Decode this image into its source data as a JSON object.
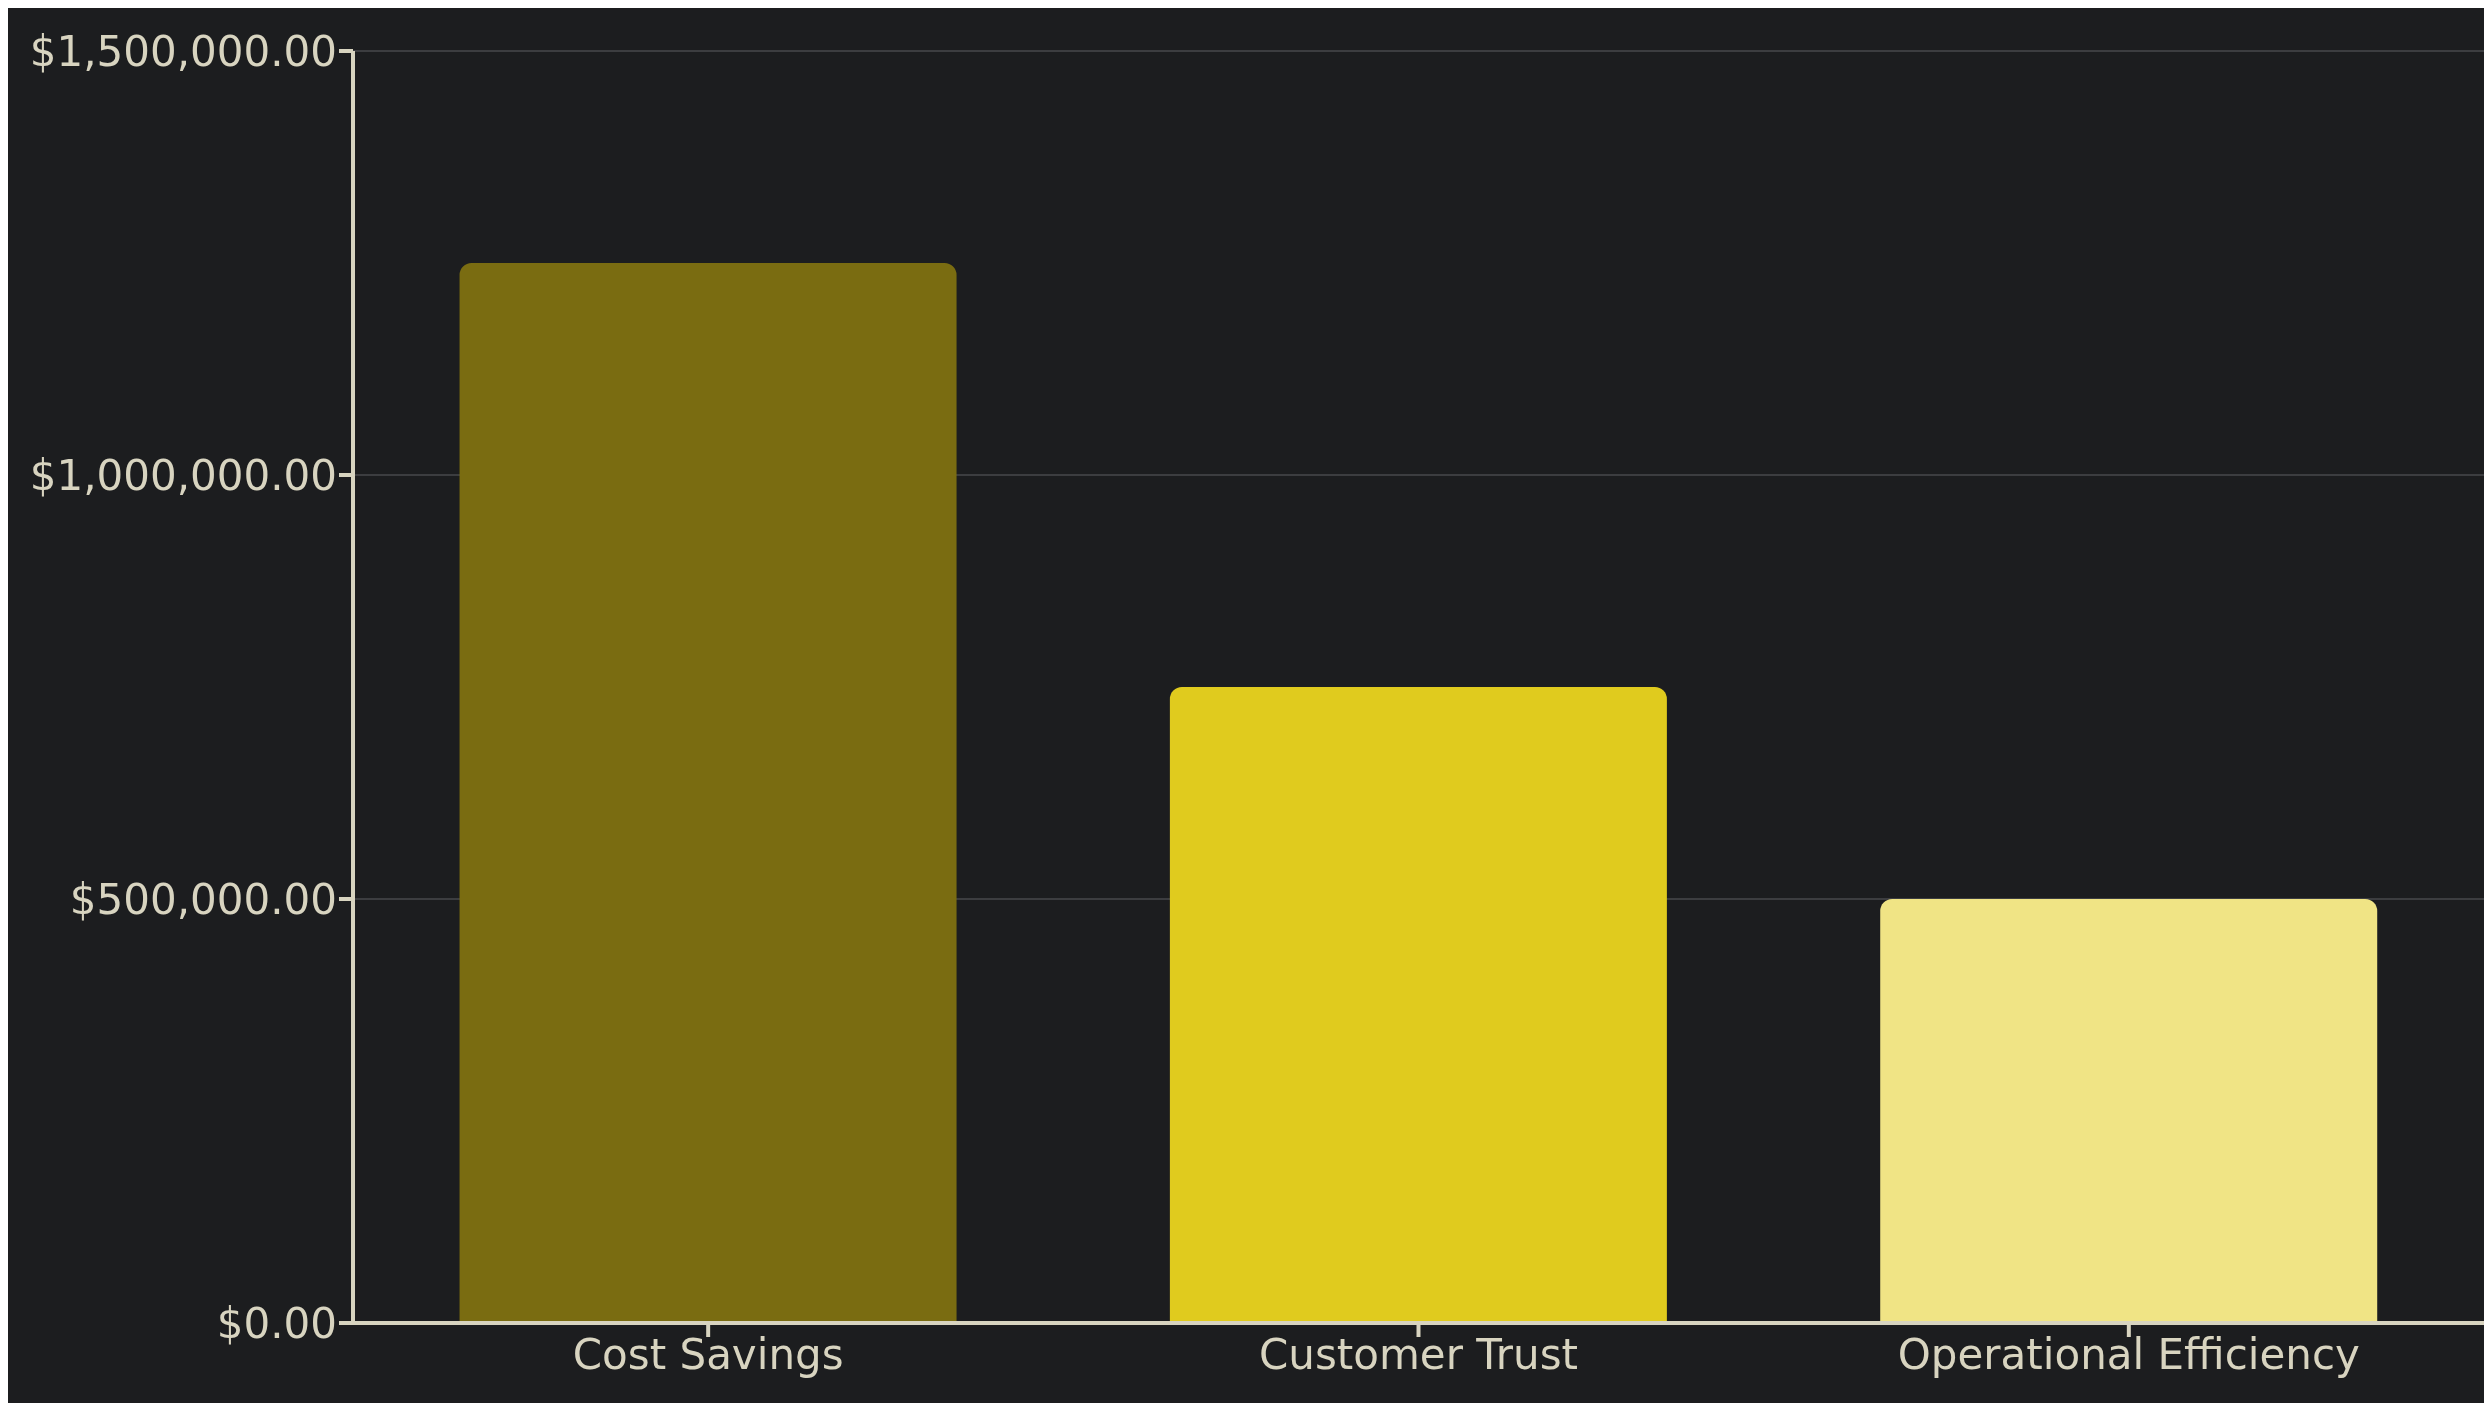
{
  "chart_data": {
    "type": "bar",
    "categories": [
      "Cost Savings",
      "Customer Trust",
      "Operational Efficiency"
    ],
    "values": [
      1250000,
      750000,
      500000
    ],
    "colors": [
      "#7a6c11",
      "#e0cb1e",
      "#f0e485"
    ],
    "ylim": [
      0,
      1500000
    ],
    "yticks": [
      {
        "value": 0,
        "label": "$0.00"
      },
      {
        "value": 500000,
        "label": "$500,000.00"
      },
      {
        "value": 1000000,
        "label": "$1,000,000.00"
      },
      {
        "value": 1500000,
        "label": "$1,500,000.00"
      }
    ],
    "grid": "y"
  }
}
